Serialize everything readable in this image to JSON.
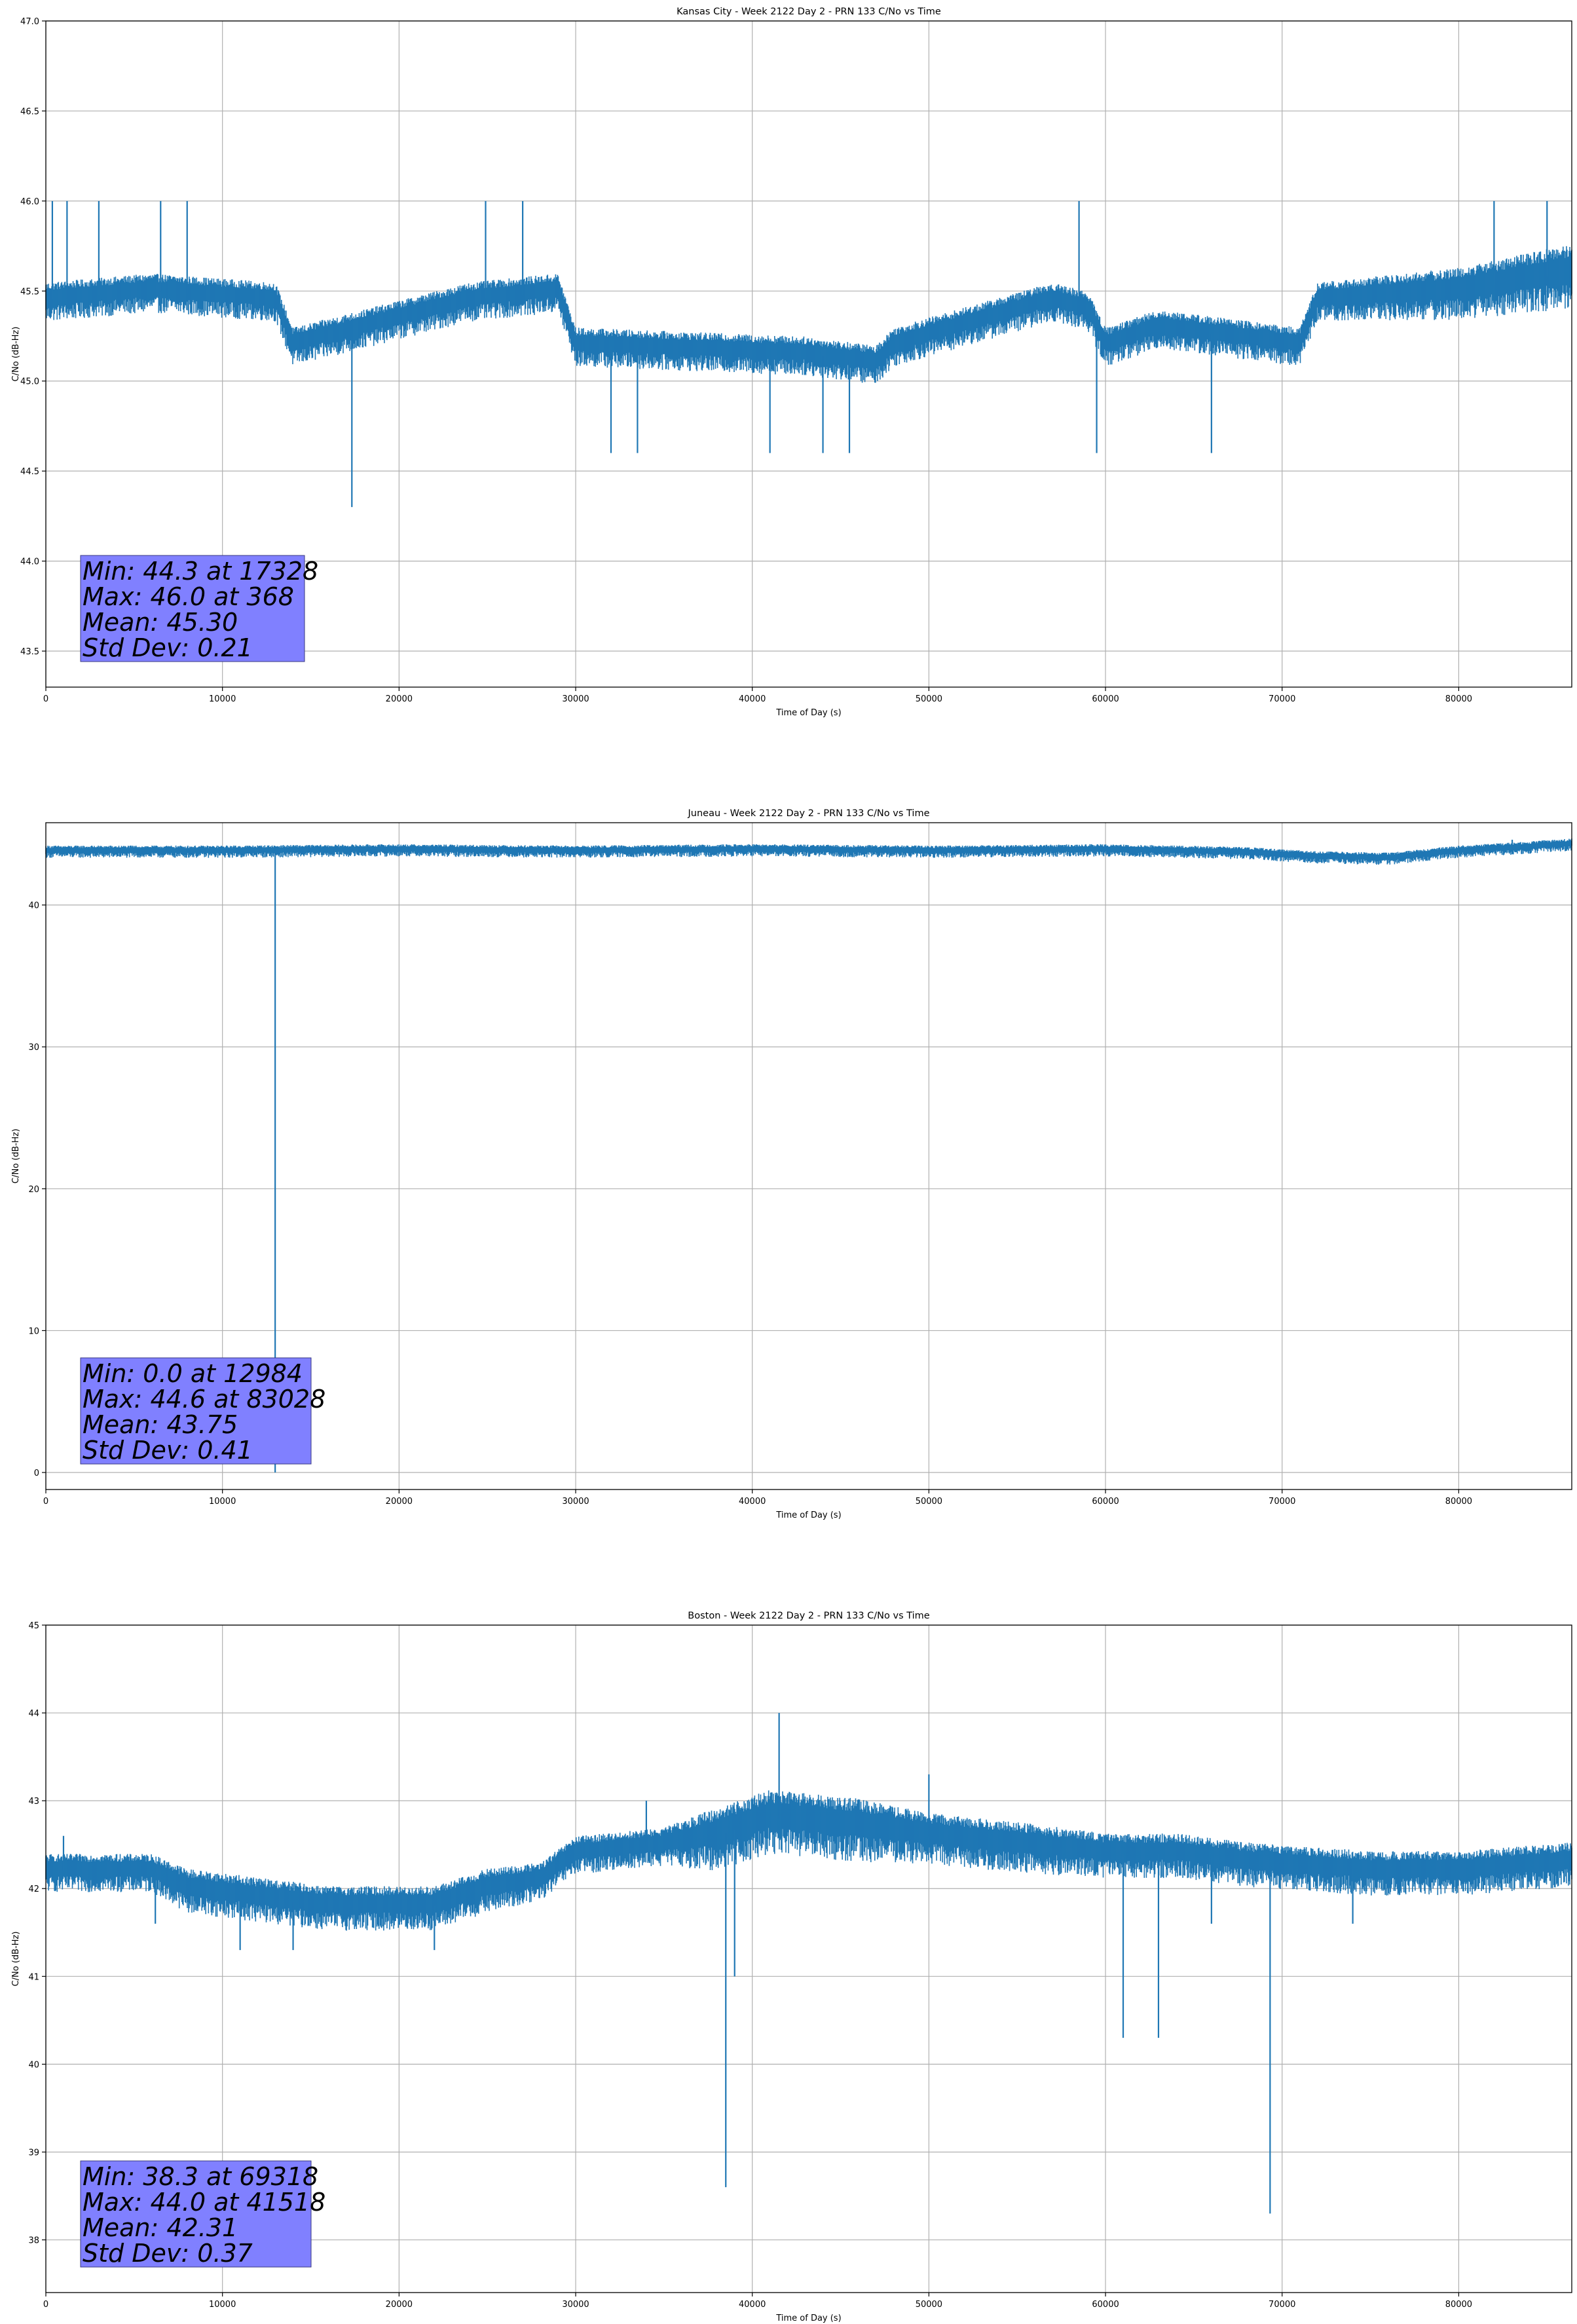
{
  "chart_data": [
    {
      "type": "line",
      "title": "Kansas City - Week 2122 Day 2 - PRN 133 C/No vs Time",
      "xlabel": "Time of Day (s)",
      "ylabel": "C/No (dB-Hz)",
      "xlim": [
        0,
        86400
      ],
      "ylim": [
        43.3,
        47.0
      ],
      "xticks": [
        0,
        10000,
        20000,
        30000,
        40000,
        50000,
        60000,
        70000,
        80000
      ],
      "yticks": [
        43.5,
        44.0,
        44.5,
        45.0,
        45.5,
        46.0,
        46.5,
        47.0
      ],
      "ytick_labels": [
        "43.5",
        "44.0",
        "44.5",
        "45.0",
        "45.5",
        "46.0",
        "46.5",
        "47.0"
      ],
      "grid": true,
      "series_color": "#1f77b4",
      "stats_box_color": "#8080ff",
      "series": [
        {
          "x": [
            0,
            6000,
            13000,
            14000,
            24000,
            29000,
            30000,
            43000,
            47000,
            48000,
            57000,
            59000,
            60000,
            63000,
            71000,
            72000,
            80000,
            86400
          ],
          "y": [
            45.45,
            45.5,
            45.45,
            45.2,
            45.45,
            45.5,
            45.2,
            45.15,
            45.1,
            45.2,
            45.45,
            45.4,
            45.2,
            45.3,
            45.2,
            45.45,
            45.5,
            45.6
          ],
          "band": [
            0.15,
            0.15,
            0.15,
            0.15,
            0.15,
            0.15,
            0.15,
            0.15,
            0.15,
            0.15,
            0.15,
            0.15,
            0.15,
            0.15,
            0.15,
            0.15,
            0.2,
            0.25
          ],
          "spikes": [
            {
              "x": 368,
              "y": 46.0
            },
            {
              "x": 1200,
              "y": 46.0
            },
            {
              "x": 3000,
              "y": 46.0
            },
            {
              "x": 6500,
              "y": 46.0
            },
            {
              "x": 8000,
              "y": 46.0
            },
            {
              "x": 17328,
              "y": 44.3
            },
            {
              "x": 24900,
              "y": 46.0
            },
            {
              "x": 27000,
              "y": 46.0
            },
            {
              "x": 32000,
              "y": 44.6
            },
            {
              "x": 33500,
              "y": 44.6
            },
            {
              "x": 41000,
              "y": 44.6
            },
            {
              "x": 44000,
              "y": 44.6
            },
            {
              "x": 45500,
              "y": 44.6
            },
            {
              "x": 58500,
              "y": 46.0
            },
            {
              "x": 59500,
              "y": 44.6
            },
            {
              "x": 66000,
              "y": 44.6
            },
            {
              "x": 82000,
              "y": 46.0
            },
            {
              "x": 85000,
              "y": 46.0
            }
          ]
        }
      ],
      "stats": [
        "Min: 44.3 at 17328",
        "Max: 46.0 at 368",
        "Mean: 45.30",
        "Std Dev: 0.21"
      ]
    },
    {
      "type": "line",
      "title": "Juneau - Week 2122 Day 2 - PRN 133 C/No vs Time",
      "xlabel": "Time of Day (s)",
      "ylabel": "C/No (dB-Hz)",
      "xlim": [
        0,
        86400
      ],
      "ylim": [
        -1.2,
        45.8
      ],
      "xticks": [
        0,
        10000,
        20000,
        30000,
        40000,
        50000,
        60000,
        70000,
        80000
      ],
      "yticks": [
        0,
        10,
        20,
        30,
        40
      ],
      "ytick_labels": [
        "0",
        "10",
        "20",
        "30",
        "40"
      ],
      "grid": true,
      "series_color": "#1f77b4",
      "stats_box_color": "#8080ff",
      "series": [
        {
          "x": [
            0,
            10000,
            20000,
            30000,
            40000,
            50000,
            60000,
            68000,
            72000,
            76000,
            80000,
            84000,
            86400
          ],
          "y": [
            43.8,
            43.8,
            43.9,
            43.8,
            43.9,
            43.8,
            43.9,
            43.7,
            43.4,
            43.3,
            43.8,
            44.1,
            44.3
          ],
          "band": [
            0.6,
            0.6,
            0.6,
            0.6,
            0.6,
            0.6,
            0.6,
            0.6,
            0.6,
            0.6,
            0.6,
            0.6,
            0.6
          ],
          "spikes": [
            {
              "x": 12984,
              "y": 0.0
            },
            {
              "x": 83028,
              "y": 44.6
            }
          ]
        }
      ],
      "stats": [
        "Min: 0.0 at 12984",
        "Max: 44.6 at 83028",
        "Mean: 43.75",
        "Std Dev: 0.41"
      ]
    },
    {
      "type": "line",
      "title": "Boston - Week 2122 Day 2 - PRN 133 C/No vs Time",
      "xlabel": "Time of Day (s)",
      "ylabel": "C/No (dB-Hz)",
      "xlim": [
        0,
        86400
      ],
      "ylim": [
        37.4,
        45.0
      ],
      "xticks": [
        0,
        10000,
        20000,
        30000,
        40000,
        50000,
        60000,
        70000,
        80000
      ],
      "yticks": [
        38,
        39,
        40,
        41,
        42,
        43,
        44,
        45
      ],
      "ytick_labels": [
        "38",
        "39",
        "40",
        "41",
        "42",
        "43",
        "44",
        "45"
      ],
      "grid": true,
      "series_color": "#1f77b4",
      "stats_box_color": "#8080ff",
      "series": [
        {
          "x": [
            0,
            6000,
            8000,
            16000,
            22000,
            25000,
            28000,
            30000,
            35000,
            38000,
            41000,
            46000,
            50000,
            55000,
            60000,
            64000,
            68000,
            75000,
            80000,
            86400
          ],
          "y": [
            42.2,
            42.2,
            42.0,
            41.8,
            41.8,
            42.0,
            42.1,
            42.4,
            42.5,
            42.6,
            42.8,
            42.7,
            42.6,
            42.5,
            42.4,
            42.4,
            42.3,
            42.2,
            42.2,
            42.3
          ],
          "band": [
            0.3,
            0.3,
            0.35,
            0.35,
            0.35,
            0.35,
            0.3,
            0.3,
            0.3,
            0.5,
            0.5,
            0.5,
            0.4,
            0.4,
            0.35,
            0.35,
            0.35,
            0.35,
            0.35,
            0.35
          ],
          "spikes": [
            {
              "x": 1000,
              "y": 42.6
            },
            {
              "x": 6200,
              "y": 41.6
            },
            {
              "x": 11000,
              "y": 41.3
            },
            {
              "x": 14000,
              "y": 41.3
            },
            {
              "x": 22000,
              "y": 41.3
            },
            {
              "x": 34000,
              "y": 43.0
            },
            {
              "x": 38500,
              "y": 38.6
            },
            {
              "x": 39000,
              "y": 41.0
            },
            {
              "x": 41518,
              "y": 44.0
            },
            {
              "x": 50000,
              "y": 43.3
            },
            {
              "x": 61000,
              "y": 40.3
            },
            {
              "x": 63000,
              "y": 40.3
            },
            {
              "x": 66000,
              "y": 41.6
            },
            {
              "x": 69318,
              "y": 38.3
            },
            {
              "x": 74000,
              "y": 41.6
            }
          ]
        }
      ],
      "stats": [
        "Min: 38.3 at 69318",
        "Max: 44.0 at 41518",
        "Mean: 42.31",
        "Std Dev: 0.37"
      ]
    }
  ]
}
